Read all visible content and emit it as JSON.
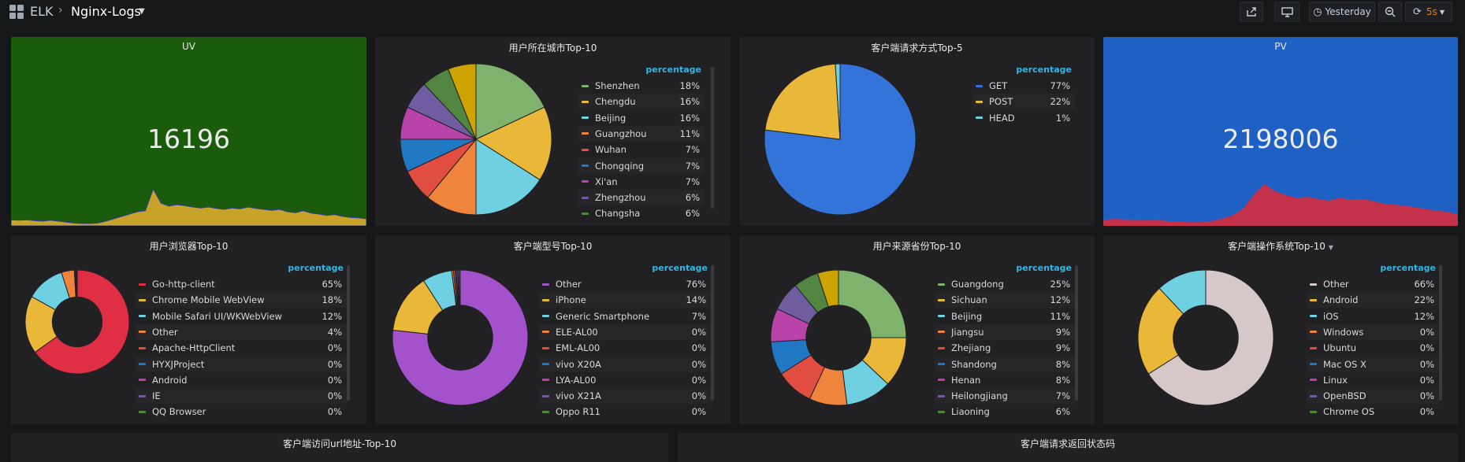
{
  "topbar": {
    "crumb_app": "ELK",
    "crumb_dashboard": "Nginx-Logs",
    "time_range": "Yesterday",
    "refresh": "5s"
  },
  "panels": {
    "uv": {
      "title": "UV",
      "value": "16196",
      "bg": "#1a5c0b",
      "spark_color": "#c8a32a"
    },
    "city": {
      "title": "用户所在城市Top-10"
    },
    "method": {
      "title": "客户端请求方式Top-5"
    },
    "pv": {
      "title": "PV",
      "value": "2198006",
      "bg": "#1f60c4",
      "spark_color": "#c4314b"
    },
    "browser": {
      "title": "用户浏览器Top-10"
    },
    "model": {
      "title": "客户端型号Top-10"
    },
    "province": {
      "title": "用户来源省份Top-10"
    },
    "os": {
      "title": "客户端操作系统Top-10"
    },
    "url": {
      "title": "客户端访问url地址-Top-10"
    },
    "status": {
      "title": "客户端请求返回状态码"
    }
  },
  "legend_header": "percentage",
  "charts": {
    "city": {
      "type": "pie",
      "items": [
        {
          "name": "Shenzhen",
          "pct": "18%",
          "v": 18,
          "color": "#7eb26d"
        },
        {
          "name": "Chengdu",
          "pct": "16%",
          "v": 16,
          "color": "#eab839"
        },
        {
          "name": "Beijing",
          "pct": "16%",
          "v": 16,
          "color": "#6ed0e0"
        },
        {
          "name": "Guangzhou",
          "pct": "11%",
          "v": 11,
          "color": "#ef843c"
        },
        {
          "name": "Wuhan",
          "pct": "7%",
          "v": 7,
          "color": "#e24d42"
        },
        {
          "name": "Chongqing",
          "pct": "7%",
          "v": 7,
          "color": "#1f78c1"
        },
        {
          "name": "Xi'an",
          "pct": "7%",
          "v": 7,
          "color": "#ba43a9"
        },
        {
          "name": "Zhengzhou",
          "pct": "6%",
          "v": 6,
          "color": "#705da0"
        },
        {
          "name": "Changsha",
          "pct": "6%",
          "v": 6,
          "color": "#508642"
        },
        {
          "name": "",
          "pct": "",
          "v": 6,
          "color": "#cca300",
          "hidden": true
        }
      ]
    },
    "method": {
      "type": "pie",
      "items": [
        {
          "name": "GET",
          "pct": "77%",
          "v": 77,
          "color": "#3274d9"
        },
        {
          "name": "POST",
          "pct": "22%",
          "v": 22,
          "color": "#eab839"
        },
        {
          "name": "HEAD",
          "pct": "1%",
          "v": 1,
          "color": "#6ed0e0"
        }
      ]
    },
    "browser": {
      "type": "donut",
      "items": [
        {
          "name": "Go-http-client",
          "pct": "65%",
          "v": 65,
          "color": "#e02f44"
        },
        {
          "name": "Chrome Mobile WebView",
          "pct": "18%",
          "v": 18,
          "color": "#eab839"
        },
        {
          "name": "Mobile Safari UI/WKWebView",
          "pct": "12%",
          "v": 12,
          "color": "#6ed0e0"
        },
        {
          "name": "Other",
          "pct": "4%",
          "v": 4,
          "color": "#ef843c"
        },
        {
          "name": "Apache-HttpClient",
          "pct": "0%",
          "v": 0.3,
          "color": "#e24d42"
        },
        {
          "name": "HYXJProject",
          "pct": "0%",
          "v": 0.2,
          "color": "#1f78c1"
        },
        {
          "name": "Android",
          "pct": "0%",
          "v": 0.2,
          "color": "#ba43a9"
        },
        {
          "name": "IE",
          "pct": "0%",
          "v": 0.1,
          "color": "#705da0"
        },
        {
          "name": "QQ Browser",
          "pct": "0%",
          "v": 0.1,
          "color": "#508642"
        }
      ]
    },
    "model": {
      "type": "donut",
      "items": [
        {
          "name": "Other",
          "pct": "76%",
          "v": 76,
          "color": "#a352cc"
        },
        {
          "name": "iPhone",
          "pct": "14%",
          "v": 14,
          "color": "#eab839"
        },
        {
          "name": "Generic Smartphone",
          "pct": "7%",
          "v": 7,
          "color": "#6ed0e0"
        },
        {
          "name": "ELE-AL00",
          "pct": "0%",
          "v": 0.4,
          "color": "#ef843c"
        },
        {
          "name": "EML-AL00",
          "pct": "0%",
          "v": 0.4,
          "color": "#e24d42"
        },
        {
          "name": "vivo X20A",
          "pct": "0%",
          "v": 0.3,
          "color": "#1f78c1"
        },
        {
          "name": "LYA-AL00",
          "pct": "0%",
          "v": 0.3,
          "color": "#ba43a9"
        },
        {
          "name": "vivo X21A",
          "pct": "0%",
          "v": 0.3,
          "color": "#705da0"
        },
        {
          "name": "Oppo R11",
          "pct": "0%",
          "v": 0.3,
          "color": "#508642"
        }
      ]
    },
    "province": {
      "type": "donut",
      "items": [
        {
          "name": "Guangdong",
          "pct": "25%",
          "v": 25,
          "color": "#7eb26d"
        },
        {
          "name": "Sichuan",
          "pct": "12%",
          "v": 12,
          "color": "#eab839"
        },
        {
          "name": "Beijing",
          "pct": "11%",
          "v": 11,
          "color": "#6ed0e0"
        },
        {
          "name": "Jiangsu",
          "pct": "9%",
          "v": 9,
          "color": "#ef843c"
        },
        {
          "name": "Zhejiang",
          "pct": "9%",
          "v": 9,
          "color": "#e24d42"
        },
        {
          "name": "Shandong",
          "pct": "8%",
          "v": 8,
          "color": "#1f78c1"
        },
        {
          "name": "Henan",
          "pct": "8%",
          "v": 8,
          "color": "#ba43a9"
        },
        {
          "name": "Heilongjiang",
          "pct": "7%",
          "v": 7,
          "color": "#705da0"
        },
        {
          "name": "Liaoning",
          "pct": "6%",
          "v": 6,
          "color": "#508642"
        },
        {
          "name": "",
          "pct": "",
          "v": 5,
          "color": "#cca300",
          "hidden": true
        }
      ]
    },
    "os": {
      "type": "donut",
      "items": [
        {
          "name": "Other",
          "pct": "66%",
          "v": 66,
          "color": "#d6c8c8"
        },
        {
          "name": "Android",
          "pct": "22%",
          "v": 22,
          "color": "#eab839"
        },
        {
          "name": "iOS",
          "pct": "12%",
          "v": 12,
          "color": "#6ed0e0"
        },
        {
          "name": "Windows",
          "pct": "0%",
          "v": 0,
          "color": "#ef843c"
        },
        {
          "name": "Ubuntu",
          "pct": "0%",
          "v": 0,
          "color": "#e24d42"
        },
        {
          "name": "Mac OS X",
          "pct": "0%",
          "v": 0,
          "color": "#1f78c1"
        },
        {
          "name": "Linux",
          "pct": "0%",
          "v": 0,
          "color": "#ba43a9"
        },
        {
          "name": "OpenBSD",
          "pct": "0%",
          "v": 0,
          "color": "#705da0"
        },
        {
          "name": "Chrome OS",
          "pct": "0%",
          "v": 0,
          "color": "#508642"
        }
      ]
    }
  }
}
